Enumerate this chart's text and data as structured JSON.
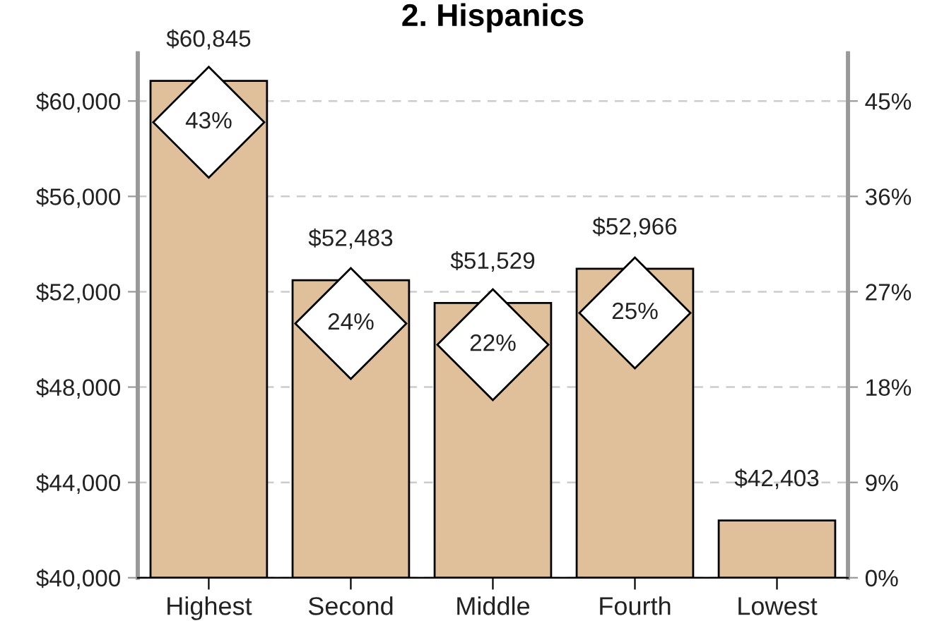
{
  "chart_data": {
    "type": "bar",
    "title": "2. Hispanics",
    "categories": [
      "Highest",
      "Second",
      "Middle",
      "Fourth",
      "Lowest"
    ],
    "series": [
      {
        "color": "#dfc09b",
        "values": [
          60845,
          52483,
          51529,
          52966,
          42403
        ],
        "value_labels": [
          "$60,845",
          "$52,483",
          "$51,529",
          "$52,966",
          "$42,403"
        ]
      },
      {
        "type": "scatter",
        "axis": "y2",
        "marker": "diamond",
        "color": "#ffffff",
        "values": [
          43,
          24,
          22,
          25,
          null
        ],
        "value_labels": [
          "43%",
          "24%",
          "22%",
          "25%",
          null
        ]
      }
    ],
    "ylim": [
      40000,
      62000
    ],
    "yticks": [
      {
        "value": 40000,
        "label": "$40,000"
      },
      {
        "value": 44000,
        "label": "$44,000"
      },
      {
        "value": 48000,
        "label": "$48,000"
      },
      {
        "value": 52000,
        "label": "$52,000"
      },
      {
        "value": 56000,
        "label": "$56,000"
      },
      {
        "value": 60000,
        "label": "$60,000"
      }
    ],
    "y2lim": [
      0,
      49.5
    ],
    "y2ticks": [
      {
        "value": 0,
        "label": "0%"
      },
      {
        "value": 9,
        "label": "9%"
      },
      {
        "value": 18,
        "label": "18%"
      },
      {
        "value": 27,
        "label": "27%"
      },
      {
        "value": 36,
        "label": "36%"
      },
      {
        "value": 45,
        "label": "45%"
      }
    ],
    "grid": "y",
    "legend": false
  }
}
